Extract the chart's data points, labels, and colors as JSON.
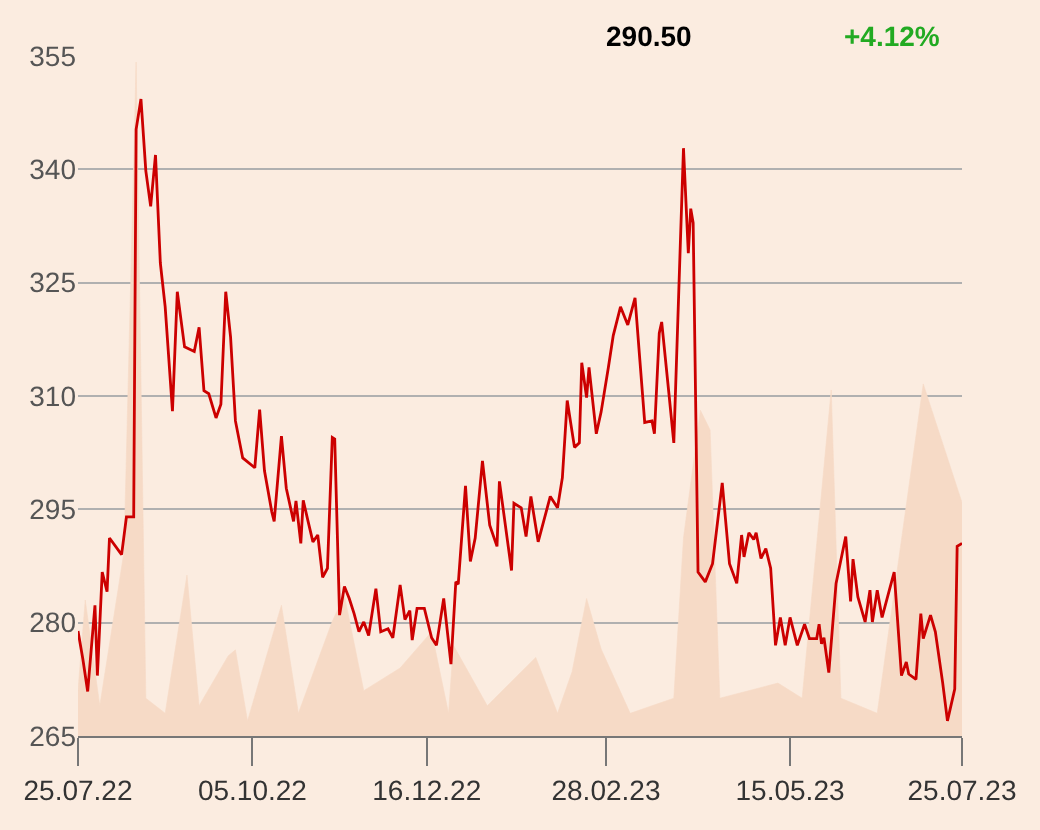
{
  "chart_data": {
    "type": "line",
    "annotations": [
      "290.50",
      "+4.12%"
    ],
    "series": [
      {
        "type": "area",
        "color": "#f6dac6",
        "axis": "y",
        "x": [
          "2022-07-25",
          "2022-07-28",
          "2022-08-03",
          "2022-08-13",
          "2022-08-18",
          "2022-08-22",
          "2022-08-30",
          "2022-09-08",
          "2022-09-13",
          "2022-09-25",
          "2022-09-28",
          "2022-10-03",
          "2022-10-17",
          "2022-10-24",
          "2022-11-07",
          "2022-11-12",
          "2022-11-20",
          "2022-12-05",
          "2022-12-18",
          "2022-12-25",
          "2022-12-27",
          "2023-01-10",
          "2023-01-30",
          "2023-02-08",
          "2023-02-14",
          "2023-02-20",
          "2023-02-26",
          "2023-03-10",
          "2023-03-28",
          "2023-04-01",
          "2023-04-08",
          "2023-04-12",
          "2023-04-16",
          "2023-05-10",
          "2023-05-20",
          "2023-06-01",
          "2023-06-05",
          "2023-06-20",
          "2023-07-09",
          "2023-07-25"
        ],
        "values": [
          271,
          283,
          269,
          289.4,
          354.2,
          270,
          268,
          286.3,
          269,
          275.6,
          276.4,
          267,
          282.3,
          268,
          280.2,
          283.6,
          271,
          274,
          278.8,
          268,
          277,
          269,
          275.4,
          268,
          273.5,
          283.2,
          276.5,
          268,
          270,
          291.2,
          308.1,
          305.5,
          270,
          272,
          270,
          310.8,
          270,
          268,
          311.6,
          295.9
        ]
      },
      {
        "color": "#cc0000",
        "x": [
          "2022-07-25",
          "2022-07-27",
          "2022-07-29",
          "2022-08-01",
          "2022-08-02",
          "2022-08-04",
          "2022-08-06",
          "2022-08-07",
          "2022-08-12",
          "2022-08-14",
          "2022-08-17",
          "2022-08-18",
          "2022-08-20",
          "2022-08-22",
          "2022-08-24",
          "2022-08-26",
          "2022-08-28",
          "2022-08-30",
          "2022-09-02",
          "2022-09-04",
          "2022-09-07",
          "2022-09-11",
          "2022-09-13",
          "2022-09-15",
          "2022-09-17",
          "2022-09-20",
          "2022-09-22",
          "2022-09-24",
          "2022-09-26",
          "2022-09-28",
          "2022-10-01",
          "2022-10-06",
          "2022-10-08",
          "2022-10-10",
          "2022-10-13",
          "2022-10-14",
          "2022-10-17",
          "2022-10-19",
          "2022-10-22",
          "2022-10-23",
          "2022-10-25",
          "2022-10-26",
          "2022-10-28",
          "2022-10-30",
          "2022-11-01",
          "2022-11-03",
          "2022-11-05",
          "2022-11-07",
          "2022-11-08",
          "2022-11-10",
          "2022-11-12",
          "2022-11-14",
          "2022-11-16",
          "2022-11-18",
          "2022-11-20",
          "2022-11-22",
          "2022-11-25",
          "2022-11-27",
          "2022-11-30",
          "2022-12-02",
          "2022-12-05",
          "2022-12-07",
          "2022-12-09",
          "2022-12-10",
          "2022-12-12",
          "2022-12-15",
          "2022-12-18",
          "2022-12-20",
          "2022-12-23",
          "2022-12-26",
          "2022-12-28",
          "2022-12-29",
          "2023-01-01",
          "2023-01-03",
          "2023-01-05",
          "2023-01-08",
          "2023-01-11",
          "2023-01-14",
          "2023-01-15",
          "2023-01-20",
          "2023-01-21",
          "2023-01-24",
          "2023-01-26",
          "2023-01-28",
          "2023-01-31",
          "2023-02-05",
          "2023-02-08",
          "2023-02-10",
          "2023-02-12",
          "2023-02-15",
          "2023-02-17",
          "2023-02-18",
          "2023-02-20",
          "2023-02-21",
          "2023-02-24",
          "2023-02-26",
          "2023-03-01",
          "2023-03-03",
          "2023-03-06",
          "2023-03-09",
          "2023-03-12",
          "2023-03-14",
          "2023-03-16",
          "2023-03-19",
          "2023-03-20",
          "2023-03-22",
          "2023-03-23",
          "2023-03-26",
          "2023-03-28",
          "2023-04-01",
          "2023-04-03",
          "2023-04-04",
          "2023-04-05",
          "2023-04-07",
          "2023-04-10",
          "2023-04-13",
          "2023-04-17",
          "2023-04-20",
          "2023-04-23",
          "2023-04-25",
          "2023-04-26",
          "2023-04-28",
          "2023-04-30",
          "2023-05-01",
          "2023-05-03",
          "2023-05-05",
          "2023-05-07",
          "2023-05-09",
          "2023-05-11",
          "2023-05-13",
          "2023-05-15",
          "2023-05-18",
          "2023-05-21",
          "2023-05-23",
          "2023-05-26",
          "2023-05-27",
          "2023-05-28",
          "2023-05-29",
          "2023-05-31",
          "2023-06-03",
          "2023-06-07",
          "2023-06-09",
          "2023-06-10",
          "2023-06-12",
          "2023-06-15",
          "2023-06-17",
          "2023-06-18",
          "2023-06-20",
          "2023-06-22",
          "2023-06-25",
          "2023-06-27",
          "2023-06-30",
          "2023-07-02",
          "2023-07-03",
          "2023-07-06",
          "2023-07-08",
          "2023-07-09",
          "2023-07-12",
          "2023-07-14",
          "2023-07-17",
          "2023-07-19",
          "2023-07-22",
          "2023-07-23",
          "2023-07-25"
        ],
        "values": [
          278.9,
          275.2,
          270.9,
          282.3,
          273.0,
          286.7,
          284.1,
          291.2,
          289.0,
          294.0,
          294.0,
          345.3,
          349.3,
          339.8,
          335.1,
          341.9,
          327.6,
          321.8,
          308.0,
          323.8,
          316.5,
          315.9,
          319.1,
          310.7,
          310.3,
          307.1,
          308.9,
          323.8,
          317.8,
          306.7,
          301.8,
          300.5,
          308.2,
          300.1,
          294.7,
          293.4,
          304.7,
          297.8,
          293.4,
          296.1,
          290.5,
          296.2,
          293.4,
          290.7,
          291.6,
          286.0,
          287.2,
          304.5,
          304.3,
          281.0,
          284.8,
          283.2,
          281.2,
          278.8,
          280.1,
          278.3,
          284.5,
          278.8,
          279.2,
          278.0,
          285.0,
          280.4,
          281.6,
          277.7,
          281.9,
          281.9,
          278.0,
          277.0,
          283.2,
          274.5,
          285.4,
          285.1,
          298.1,
          288.1,
          291.2,
          301.4,
          292.9,
          290.1,
          298.7,
          286.9,
          295.8,
          295.2,
          291.4,
          296.7,
          290.7,
          296.7,
          295.2,
          299.2,
          309.4,
          303.2,
          303.8,
          314.4,
          309.8,
          313.8,
          305.0,
          307.9,
          313.8,
          318.0,
          321.8,
          319.4,
          323.0,
          314.7,
          306.5,
          306.7,
          305.0,
          318.3,
          319.8,
          310.3,
          303.8,
          342.8,
          328.9,
          334.8,
          332.9,
          286.7,
          285.4,
          287.8,
          298.5,
          287.8,
          285.2,
          291.6,
          288.7,
          291.9,
          291.0,
          291.9,
          288.5,
          289.8,
          287.2,
          277.0,
          280.7,
          277.0,
          280.7,
          277.0,
          279.8,
          277.9,
          277.9,
          279.8,
          277.2,
          278.0,
          273.4,
          285.2,
          291.4,
          282.8,
          288.4,
          283.4,
          280.1,
          284.3,
          280.1,
          284.3,
          280.7,
          284.3,
          286.7,
          273.0,
          274.8,
          273.2,
          272.5,
          281.2,
          277.9,
          281.0,
          278.8,
          272.1,
          267.0,
          271.2,
          290.1,
          290.5
        ]
      }
    ],
    "xlim": [
      "2022-07-25",
      "2023-07-25"
    ],
    "xticks": [
      {
        "value": "2022-07-25",
        "label": "25.07.22"
      },
      {
        "value": "2022-10-05",
        "label": "05.10.22"
      },
      {
        "value": "2022-12-16",
        "label": "16.12.22"
      },
      {
        "value": "2023-02-28",
        "label": "28.02.23"
      },
      {
        "value": "2023-05-15",
        "label": "15.05.23"
      },
      {
        "value": "2023-07-25",
        "label": "25.07.23"
      }
    ],
    "ylim": [
      265,
      355
    ],
    "yticks": [
      265,
      280,
      295,
      310,
      325,
      340,
      355
    ],
    "grid": "y",
    "line_style": "solid",
    "marker": "none"
  }
}
